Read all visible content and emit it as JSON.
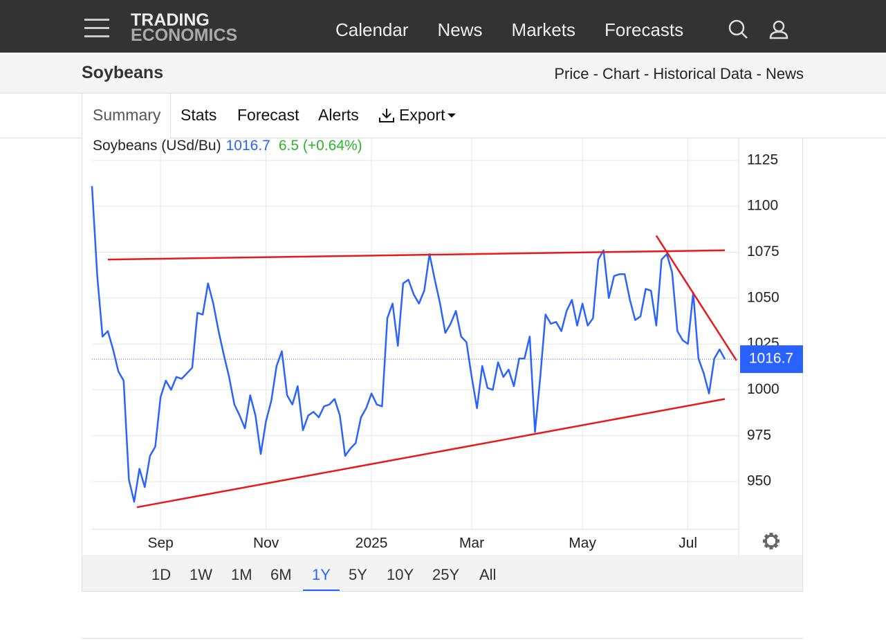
{
  "nav": {
    "brand": [
      "TRADING",
      "ECONOMICS"
    ],
    "links": [
      "Calendar",
      "News",
      "Markets",
      "Forecasts"
    ]
  },
  "header": {
    "title": "Soybeans",
    "breadcrumbs": "Price - Chart - Historical Data - News"
  },
  "tabs": [
    "Summary",
    "Stats",
    "Forecast",
    "Alerts",
    "Export"
  ],
  "ranges": [
    "1D",
    "1W",
    "1M",
    "6M",
    "1Y",
    "5Y",
    "10Y",
    "25Y",
    "All"
  ],
  "active_range": "1Y",
  "chart_data": {
    "type": "line",
    "name": "Soybeans (USd/Bu)",
    "last": 1016.7,
    "change": "6.5 (+0.64%)",
    "color": "#2962ff",
    "categories": [
      null,
      null,
      null,
      null,
      null,
      null,
      null,
      null,
      null,
      null,
      null,
      null,
      null,
      "Sep",
      null,
      null,
      null,
      null,
      null,
      null,
      null,
      null,
      null,
      null,
      null,
      null,
      null,
      null,
      null,
      null,
      null,
      null,
      null,
      "Nov",
      null,
      null,
      null,
      null,
      null,
      null,
      null,
      null,
      null,
      null,
      null,
      null,
      null,
      null,
      null,
      null,
      null,
      null,
      null,
      "2025",
      null,
      null,
      null,
      null,
      null,
      null,
      null,
      null,
      null,
      null,
      null,
      null,
      null,
      null,
      null,
      null,
      null,
      null,
      "Mar",
      null,
      null,
      null,
      null,
      null,
      null,
      null,
      null,
      null,
      null,
      null,
      null,
      null,
      null,
      null,
      null,
      null,
      null,
      null,
      null,
      "May",
      null,
      null,
      null,
      null,
      null,
      null,
      null,
      null,
      null,
      null,
      null,
      null,
      null,
      null,
      null,
      null,
      null,
      null,
      null,
      "Jul",
      null,
      null,
      null,
      null,
      null,
      null,
      null
    ],
    "values": [
      1111,
      1062,
      1029,
      1032,
      1022,
      1010,
      1005,
      951,
      939,
      957,
      947,
      964,
      969,
      996,
      1005,
      1000,
      1007,
      1006,
      1009,
      1012,
      1042,
      1041,
      1058,
      1047,
      1032,
      1019,
      1007,
      992,
      986,
      979,
      997,
      986,
      965,
      983,
      994,
      1013,
      1021,
      997,
      992,
      1002,
      978,
      986,
      988,
      985,
      991,
      992,
      995,
      986,
      964,
      968,
      971,
      985,
      990,
      998,
      992,
      991,
      1039,
      1047,
      1024,
      1058,
      1060,
      1052,
      1047,
      1054,
      1074,
      1060,
      1047,
      1031,
      1036,
      1043,
      1029,
      1026,
      1007,
      990,
      1013,
      1001,
      1000,
      1015,
      1007,
      1011,
      1002,
      1017,
      1017,
      1029,
      977,
      1007,
      1041,
      1036,
      1037,
      1032,
      1043,
      1049,
      1035,
      1047,
      1035,
      1039,
      1071,
      1076,
      1050,
      1062,
      1063,
      1063,
      1049,
      1038,
      1040,
      1055,
      1054,
      1035,
      1071,
      1074,
      1064,
      1032,
      1027,
      1025,
      1053,
      1017,
      1009,
      998,
      1017,
      1022,
      1016.7
    ],
    "ylim": [
      924,
      1137
    ],
    "yticks": [
      950,
      975,
      1000,
      1025,
      1050,
      1075,
      1100,
      1125
    ],
    "grid": true,
    "trendlines": [
      {
        "color": "#e8191b",
        "x": [
          3,
          120
        ],
        "y": [
          1071,
          1076
        ]
      },
      {
        "color": "#e8191b",
        "x": [
          8.5,
          120
        ],
        "y": [
          936,
          995
        ]
      },
      {
        "color": "#e8191b",
        "x": [
          107,
          122.2
        ],
        "y": [
          1084,
          1016
        ]
      }
    ]
  }
}
